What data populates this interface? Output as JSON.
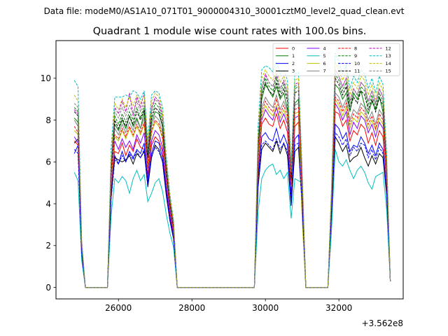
{
  "chart_data": {
    "type": "line",
    "header_text": "Data file: modeM0/AS1A10_071T01_9000004310_30001cztM0_level2_quad_clean.evt",
    "title": "Quadrant 1 module wise count rates with 100.0s bins.",
    "x_offset_label": "+3.562e8",
    "xlabel": "",
    "ylabel": "",
    "xlim": [
      24300,
      33750
    ],
    "ylim": [
      -0.55,
      11.8
    ],
    "xticks": [
      26000,
      28000,
      30000,
      32000
    ],
    "xtick_labels": [
      "26000",
      "28000",
      "30000",
      "32000"
    ],
    "yticks": [
      0,
      2,
      4,
      6,
      8,
      10
    ],
    "ytick_labels": [
      "0",
      "2",
      "4",
      "6",
      "8",
      "10"
    ],
    "legend_position": "top-right",
    "legend_columns": 4,
    "x": [
      24800,
      24900,
      25000,
      25100,
      25600,
      25700,
      25800,
      25900,
      26000,
      26100,
      26200,
      26300,
      26400,
      26500,
      26600,
      26700,
      26800,
      26900,
      27000,
      27100,
      27200,
      27300,
      27400,
      27500,
      27600,
      27700,
      29700,
      29800,
      29900,
      30000,
      30100,
      30200,
      30300,
      30400,
      30500,
      30600,
      30700,
      30800,
      30900,
      31000,
      31100,
      31200,
      31700,
      31800,
      31900,
      32000,
      32100,
      32200,
      32300,
      32400,
      32500,
      32600,
      32700,
      32800,
      32900,
      33000,
      33100,
      33200,
      33300,
      33400
    ],
    "series": [
      {
        "name": "0",
        "color": "#ff0000",
        "dash": "solid",
        "values": [
          7.0,
          6.8,
          1.8,
          0,
          0,
          0,
          4.5,
          6.5,
          6.4,
          6.9,
          6.3,
          6.8,
          6.5,
          7.1,
          6.7,
          6.6,
          5.2,
          6.8,
          7.2,
          7.0,
          6.5,
          4.8,
          3.4,
          2.5,
          0,
          0,
          0,
          5.5,
          7.8,
          8.1,
          7.8,
          7.7,
          8.3,
          7.6,
          8.0,
          7.4,
          4.5,
          7.7,
          7.9,
          4.4,
          0,
          0,
          0,
          3.8,
          8.4,
          8.3,
          7.7,
          8.0,
          7.0,
          7.5,
          7.3,
          7.8,
          7.6,
          6.9,
          7.4,
          6.8,
          7.5,
          7.2,
          5.0,
          0.3
        ]
      },
      {
        "name": "1",
        "color": "#008000",
        "dash": "solid",
        "values": [
          8.1,
          7.9,
          1.9,
          0,
          0,
          0,
          5.5,
          7.8,
          7.5,
          8.0,
          7.6,
          8.2,
          7.7,
          8.1,
          7.6,
          8.4,
          6.2,
          7.9,
          8.4,
          8.3,
          7.7,
          5.5,
          4.0,
          2.8,
          0,
          0,
          0,
          6.6,
          9.0,
          9.7,
          9.4,
          9.1,
          9.6,
          9.0,
          9.3,
          8.5,
          5.0,
          8.8,
          9.0,
          4.9,
          0,
          0,
          0,
          4.2,
          9.7,
          9.5,
          9.0,
          9.3,
          8.4,
          9.3,
          9.0,
          9.4,
          8.7,
          8.3,
          8.9,
          8.5,
          9.1,
          8.4,
          5.6,
          0.3
        ]
      },
      {
        "name": "2",
        "color": "#0000ff",
        "dash": "solid",
        "values": [
          6.4,
          6.8,
          1.6,
          0,
          0,
          0,
          4.3,
          6.3,
          5.9,
          6.5,
          6.0,
          6.5,
          6.2,
          6.6,
          6.4,
          6.9,
          5.0,
          6.4,
          7.0,
          6.9,
          6.2,
          4.6,
          3.3,
          2.4,
          0,
          0,
          0,
          5.2,
          7.2,
          7.4,
          7.1,
          7.0,
          7.6,
          6.9,
          7.3,
          6.8,
          4.2,
          7.1,
          7.3,
          4.0,
          0,
          0,
          0,
          3.6,
          7.8,
          7.6,
          7.1,
          7.4,
          6.5,
          6.8,
          6.7,
          7.2,
          6.9,
          6.4,
          6.8,
          6.3,
          6.9,
          6.6,
          4.6,
          0.3
        ]
      },
      {
        "name": "3",
        "color": "#000000",
        "dash": "solid",
        "values": [
          6.9,
          7.1,
          1.7,
          0,
          0,
          0,
          4.4,
          6.2,
          6.1,
          6.0,
          6.1,
          6.3,
          5.9,
          6.4,
          6.2,
          6.5,
          4.8,
          6.2,
          6.8,
          6.6,
          6.0,
          4.4,
          3.2,
          2.3,
          0,
          0,
          0,
          4.8,
          6.6,
          6.9,
          6.7,
          6.5,
          7.0,
          6.4,
          6.9,
          6.3,
          3.9,
          6.5,
          6.7,
          3.8,
          0,
          0,
          0,
          3.5,
          7.2,
          6.9,
          6.5,
          6.8,
          6.0,
          6.2,
          6.3,
          6.7,
          6.2,
          5.8,
          6.3,
          5.9,
          6.4,
          6.2,
          4.4,
          0.3
        ]
      },
      {
        "name": "4",
        "color": "#8000ff",
        "dash": "solid",
        "values": [
          7.2,
          6.9,
          1.8,
          0,
          0,
          0,
          4.8,
          7.0,
          6.6,
          7.1,
          6.7,
          7.0,
          6.6,
          7.3,
          6.9,
          7.4,
          5.4,
          7.0,
          7.5,
          7.3,
          6.7,
          4.9,
          3.6,
          2.6,
          0,
          0,
          0,
          5.8,
          8.0,
          8.5,
          8.2,
          8.0,
          8.6,
          7.9,
          8.3,
          7.8,
          4.7,
          8.1,
          8.2,
          4.6,
          0,
          0,
          0,
          4.0,
          8.8,
          8.5,
          8.0,
          8.4,
          7.3,
          7.9,
          7.6,
          8.2,
          8.0,
          7.4,
          7.8,
          7.2,
          7.9,
          7.6,
          5.2,
          0.3
        ]
      },
      {
        "name": "5",
        "color": "#00bfbf",
        "dash": "solid",
        "values": [
          5.5,
          5.1,
          1.3,
          0,
          0,
          0,
          3.4,
          5.2,
          5.0,
          5.3,
          5.1,
          4.5,
          5.2,
          5.6,
          5.1,
          5.4,
          4.1,
          4.5,
          5.0,
          5.2,
          4.6,
          3.5,
          2.6,
          1.9,
          0,
          0,
          0,
          3.6,
          5.2,
          5.6,
          5.8,
          5.9,
          5.4,
          5.6,
          5.2,
          5.5,
          3.3,
          5.2,
          5.1,
          5.0,
          0,
          0,
          0,
          2.8,
          6.6,
          6.0,
          5.8,
          6.1,
          5.6,
          5.2,
          5.6,
          5.8,
          5.5,
          5.0,
          4.7,
          5.3,
          5.4,
          5.5,
          3.7,
          0.3
        ]
      },
      {
        "name": "6",
        "color": "#bfbf00",
        "dash": "solid",
        "values": [
          7.5,
          7.3,
          1.9,
          0,
          0,
          0,
          5.0,
          7.2,
          7.0,
          7.5,
          7.1,
          7.6,
          7.2,
          7.7,
          7.3,
          7.8,
          5.6,
          7.4,
          7.9,
          7.7,
          7.1,
          5.2,
          3.8,
          2.7,
          0,
          0,
          0,
          5.9,
          8.2,
          8.7,
          8.4,
          8.2,
          8.7,
          8.1,
          8.5,
          8.0,
          4.8,
          8.3,
          8.4,
          3.2,
          0,
          0,
          0,
          4.0,
          9.0,
          8.7,
          8.2,
          8.6,
          7.6,
          8.1,
          7.9,
          8.4,
          8.2,
          7.6,
          8.0,
          7.5,
          8.1,
          7.8,
          5.3,
          0.3
        ]
      },
      {
        "name": "7",
        "color": "#808080",
        "dash": "solid",
        "values": [
          8.0,
          7.7,
          1.9,
          0,
          0,
          0,
          5.4,
          7.6,
          7.3,
          7.8,
          7.4,
          7.9,
          7.5,
          8.0,
          7.6,
          8.1,
          5.9,
          7.7,
          8.2,
          8.0,
          7.4,
          5.4,
          3.9,
          2.8,
          0,
          0,
          0,
          6.3,
          8.6,
          9.1,
          8.8,
          8.6,
          9.2,
          8.5,
          8.9,
          8.4,
          5.0,
          8.7,
          8.8,
          4.8,
          0,
          0,
          0,
          4.2,
          9.3,
          9.1,
          8.6,
          9.0,
          8.0,
          8.5,
          8.3,
          8.8,
          8.6,
          8.0,
          8.4,
          7.8,
          8.5,
          8.2,
          5.5,
          0.3
        ]
      },
      {
        "name": "8",
        "color": "#ff0000",
        "dash": "dashed",
        "values": [
          7.7,
          7.4,
          1.9,
          0,
          0,
          0,
          5.2,
          7.3,
          7.1,
          7.6,
          7.2,
          7.7,
          7.3,
          7.8,
          7.4,
          7.9,
          5.7,
          7.5,
          8.0,
          7.8,
          7.2,
          5.3,
          3.8,
          2.7,
          0,
          0,
          0,
          6.1,
          8.4,
          8.9,
          8.6,
          8.4,
          9.0,
          8.3,
          8.7,
          8.2,
          4.9,
          8.5,
          8.6,
          4.7,
          0,
          0,
          0,
          4.1,
          9.1,
          8.9,
          8.4,
          8.8,
          7.8,
          8.3,
          8.1,
          8.6,
          8.4,
          7.8,
          8.2,
          7.6,
          8.3,
          8.0,
          5.4,
          0.3
        ]
      },
      {
        "name": "9",
        "color": "#008000",
        "dash": "dashed",
        "values": [
          8.6,
          8.4,
          2.0,
          0,
          0,
          0,
          5.8,
          8.2,
          7.8,
          8.3,
          7.9,
          8.4,
          8.0,
          8.6,
          8.1,
          8.7,
          6.4,
          8.3,
          8.8,
          8.6,
          7.9,
          5.8,
          4.2,
          3.0,
          0,
          0,
          0,
          6.9,
          9.4,
          10.0,
          9.6,
          9.4,
          10.0,
          9.3,
          9.7,
          9.1,
          5.4,
          9.5,
          9.6,
          5.2,
          0,
          0,
          0,
          4.6,
          10.2,
          9.9,
          9.4,
          9.8,
          8.7,
          9.3,
          9.0,
          9.6,
          9.4,
          8.7,
          9.2,
          8.6,
          9.3,
          8.9,
          5.9,
          0.3
        ]
      },
      {
        "name": "10",
        "color": "#0000ff",
        "dash": "dashed",
        "values": [
          6.6,
          6.4,
          1.6,
          0,
          0,
          0,
          4.2,
          6.1,
          5.9,
          6.3,
          6.0,
          6.4,
          6.1,
          6.5,
          6.2,
          6.6,
          4.8,
          6.3,
          6.7,
          6.5,
          6.0,
          4.5,
          3.2,
          2.3,
          0,
          0,
          0,
          5.0,
          6.8,
          7.0,
          6.8,
          6.6,
          7.1,
          6.6,
          6.9,
          6.5,
          3.9,
          6.8,
          6.9,
          3.9,
          0,
          0,
          0,
          3.6,
          7.4,
          7.2,
          6.8,
          7.1,
          6.3,
          6.7,
          6.5,
          6.9,
          6.8,
          6.2,
          6.6,
          6.1,
          6.7,
          6.4,
          4.5,
          0.3
        ]
      },
      {
        "name": "11",
        "color": "#000000",
        "dash": "dashed",
        "values": [
          8.4,
          8.2,
          2.0,
          0,
          0,
          0,
          5.6,
          8.0,
          7.6,
          8.1,
          7.7,
          8.2,
          7.8,
          8.4,
          8.0,
          8.5,
          6.2,
          8.1,
          8.6,
          8.4,
          7.7,
          5.6,
          4.0,
          2.9,
          0,
          0,
          0,
          6.7,
          9.2,
          9.8,
          9.4,
          9.2,
          9.8,
          9.1,
          9.5,
          8.9,
          5.2,
          9.3,
          9.4,
          5.1,
          0,
          0,
          0,
          4.5,
          10.0,
          9.7,
          9.2,
          9.6,
          8.5,
          9.1,
          8.8,
          9.4,
          9.2,
          8.5,
          9.0,
          8.4,
          9.1,
          8.7,
          5.8,
          0.3
        ]
      },
      {
        "name": "12",
        "color": "#bf00bf",
        "dash": "dashed",
        "values": [
          8.5,
          8.3,
          2.0,
          0,
          0,
          0,
          5.7,
          8.6,
          8.3,
          8.9,
          8.4,
          9.3,
          8.2,
          9.1,
          8.6,
          9.3,
          6.6,
          8.6,
          9.1,
          8.9,
          8.2,
          6.0,
          4.3,
          3.1,
          0,
          0,
          0,
          7.0,
          9.6,
          10.2,
          9.8,
          9.6,
          10.2,
          9.5,
          9.9,
          9.3,
          5.5,
          9.7,
          9.8,
          5.3,
          0,
          0,
          0,
          4.7,
          10.4,
          10.1,
          9.6,
          10.0,
          8.9,
          9.5,
          9.2,
          9.8,
          9.6,
          8.9,
          9.4,
          8.8,
          9.5,
          9.1,
          6.0,
          0.3
        ]
      },
      {
        "name": "13",
        "color": "#00bfbf",
        "dash": "dashed",
        "values": [
          9.9,
          9.6,
          2.3,
          0,
          0,
          0,
          6.6,
          9.1,
          9.1,
          9.1,
          9.2,
          9.1,
          9.4,
          9.3,
          9.0,
          9.4,
          7.0,
          9.2,
          9.4,
          9.3,
          8.6,
          6.3,
          4.5,
          3.2,
          0,
          0,
          0,
          7.7,
          10.4,
          10.6,
          10.5,
          10.3,
          10.8,
          10.2,
          10.4,
          9.9,
          5.8,
          10.2,
          10.3,
          5.6,
          0,
          0,
          0,
          4.9,
          11.2,
          10.8,
          10.2,
          10.6,
          9.5,
          10.1,
          9.8,
          10.4,
          10.2,
          9.5,
          10.0,
          9.3,
          10.1,
          9.7,
          6.4,
          0.3
        ]
      },
      {
        "name": "14",
        "color": "#bfbf00",
        "dash": "dashed",
        "values": [
          9.2,
          8.9,
          2.2,
          0,
          0,
          0,
          6.2,
          8.8,
          8.5,
          9.0,
          8.6,
          9.1,
          8.7,
          9.2,
          8.8,
          9.2,
          6.8,
          8.9,
          9.3,
          9.1,
          8.4,
          6.1,
          4.4,
          3.1,
          0,
          0,
          0,
          7.3,
          10.0,
          10.4,
          10.1,
          9.9,
          10.4,
          9.8,
          10.1,
          9.6,
          5.6,
          9.9,
          10.0,
          5.4,
          0,
          0,
          0,
          4.8,
          10.8,
          10.4,
          9.9,
          10.3,
          9.2,
          9.8,
          9.5,
          10.1,
          9.9,
          9.2,
          9.7,
          9.0,
          9.8,
          9.4,
          6.2,
          0.3
        ]
      },
      {
        "name": "15",
        "color": "#808080",
        "dash": "dashed",
        "values": [
          8.8,
          8.6,
          2.1,
          0,
          0,
          0,
          5.9,
          8.4,
          8.1,
          8.6,
          8.2,
          8.7,
          8.3,
          8.9,
          8.4,
          8.9,
          6.5,
          8.5,
          9.0,
          8.8,
          8.1,
          5.9,
          4.2,
          3.0,
          0,
          0,
          0,
          7.0,
          9.6,
          10.1,
          9.8,
          9.6,
          10.1,
          9.5,
          9.8,
          9.3,
          5.5,
          9.6,
          9.7,
          5.3,
          0,
          0,
          0,
          4.6,
          10.4,
          10.1,
          9.6,
          10.0,
          8.9,
          9.5,
          9.2,
          9.8,
          9.6,
          8.9,
          9.4,
          8.8,
          9.5,
          9.1,
          6.0,
          0.3
        ]
      }
    ]
  }
}
